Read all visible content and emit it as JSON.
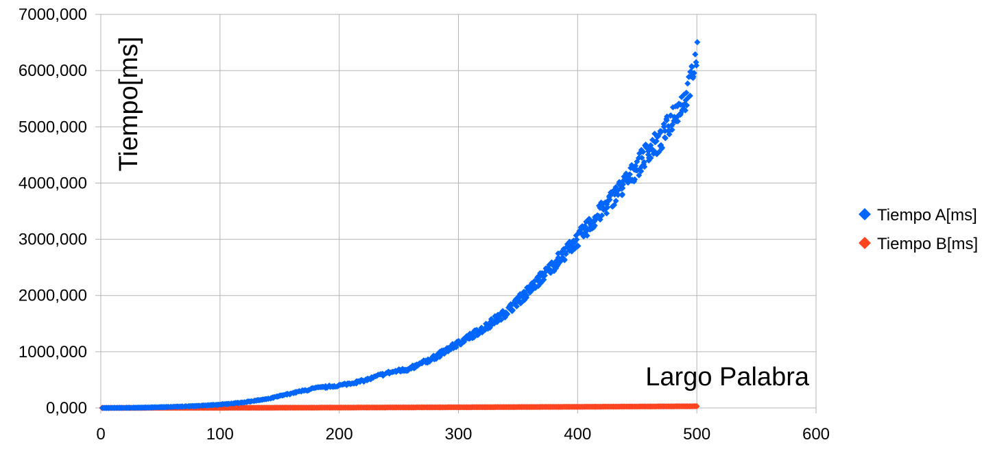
{
  "chart_data": {
    "type": "scatter",
    "title": "",
    "xlabel": "Largo Palabra",
    "ylabel": "Tiempo[ms]",
    "xlim": [
      0,
      600
    ],
    "ylim": [
      0,
      7000
    ],
    "x_ticks": [
      0,
      100,
      200,
      300,
      400,
      500,
      600
    ],
    "x_tick_labels": [
      "0",
      "100",
      "200",
      "300",
      "400",
      "500",
      "600"
    ],
    "y_ticks": [
      0,
      1000,
      2000,
      3000,
      4000,
      5000,
      6000,
      7000
    ],
    "y_tick_labels": [
      "0,000",
      "1000,000",
      "2000,000",
      "3000,000",
      "4000,000",
      "5000,000",
      "6000,000",
      "7000,000"
    ],
    "grid": true,
    "legend_position": "right",
    "series": [
      {
        "name": "Tiempo A[ms]",
        "color": "#0066ff",
        "marker": "diamond",
        "x": [
          1,
          20,
          40,
          60,
          80,
          100,
          120,
          140,
          160,
          180,
          200,
          220,
          240,
          260,
          280,
          300,
          320,
          340,
          360,
          380,
          400,
          420,
          440,
          460,
          470,
          480,
          490,
          495,
          500
        ],
        "y": [
          0,
          2,
          8,
          20,
          35,
          60,
          100,
          160,
          260,
          350,
          400,
          480,
          620,
          700,
          900,
          1150,
          1400,
          1700,
          2100,
          2550,
          3000,
          3500,
          4000,
          4600,
          4750,
          5200,
          5500,
          5800,
          6250
        ]
      },
      {
        "name": "Tiempo B[ms]",
        "color": "#ff4420",
        "marker": "diamond",
        "x": [
          1,
          50,
          100,
          150,
          200,
          250,
          300,
          350,
          400,
          450,
          500
        ],
        "y": [
          0,
          1,
          2,
          4,
          6,
          9,
          12,
          16,
          20,
          25,
          30
        ]
      }
    ]
  }
}
